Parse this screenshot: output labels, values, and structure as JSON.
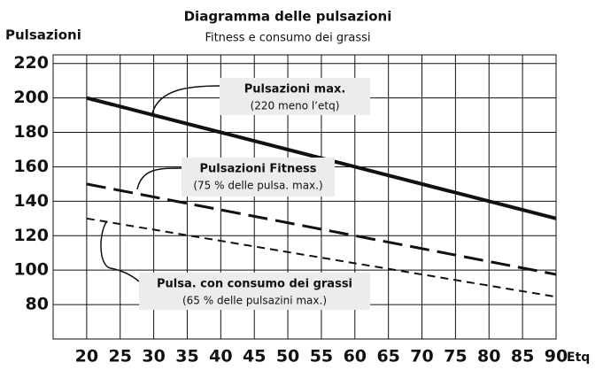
{
  "chart_data": {
    "type": "line",
    "title": "Diagramma delle pulsazioni",
    "subtitle": "Fitness  e consumo dei grassi",
    "y_label": "Pulsazioni",
    "x_label": "Etq",
    "xlim": [
      15,
      90
    ],
    "ylim": [
      60,
      225
    ],
    "xticks": [
      20,
      25,
      30,
      35,
      40,
      45,
      50,
      55,
      60,
      65,
      70,
      75,
      80,
      85,
      90
    ],
    "yticks": [
      80,
      100,
      120,
      140,
      160,
      180,
      200,
      220
    ],
    "grid": true,
    "series": [
      {
        "name": "Pulsazioni max.",
        "note": "(220  meno l’etq)",
        "color": "#111111",
        "style": "solid",
        "x": [
          20,
          90
        ],
        "values": [
          200,
          130
        ]
      },
      {
        "name": "Pulsazioni Fitness",
        "note": "(75 % delle pulsa. max.)",
        "color": "#111111",
        "style": "long-dash",
        "x": [
          20,
          90
        ],
        "values": [
          150,
          97.5
        ]
      },
      {
        "name": "Pulsa. con consumo dei grassi",
        "note": "(65 % delle pulsazini max.)",
        "color": "#111111",
        "style": "short-dash",
        "x": [
          20,
          90
        ],
        "values": [
          130,
          84.5
        ]
      }
    ]
  }
}
